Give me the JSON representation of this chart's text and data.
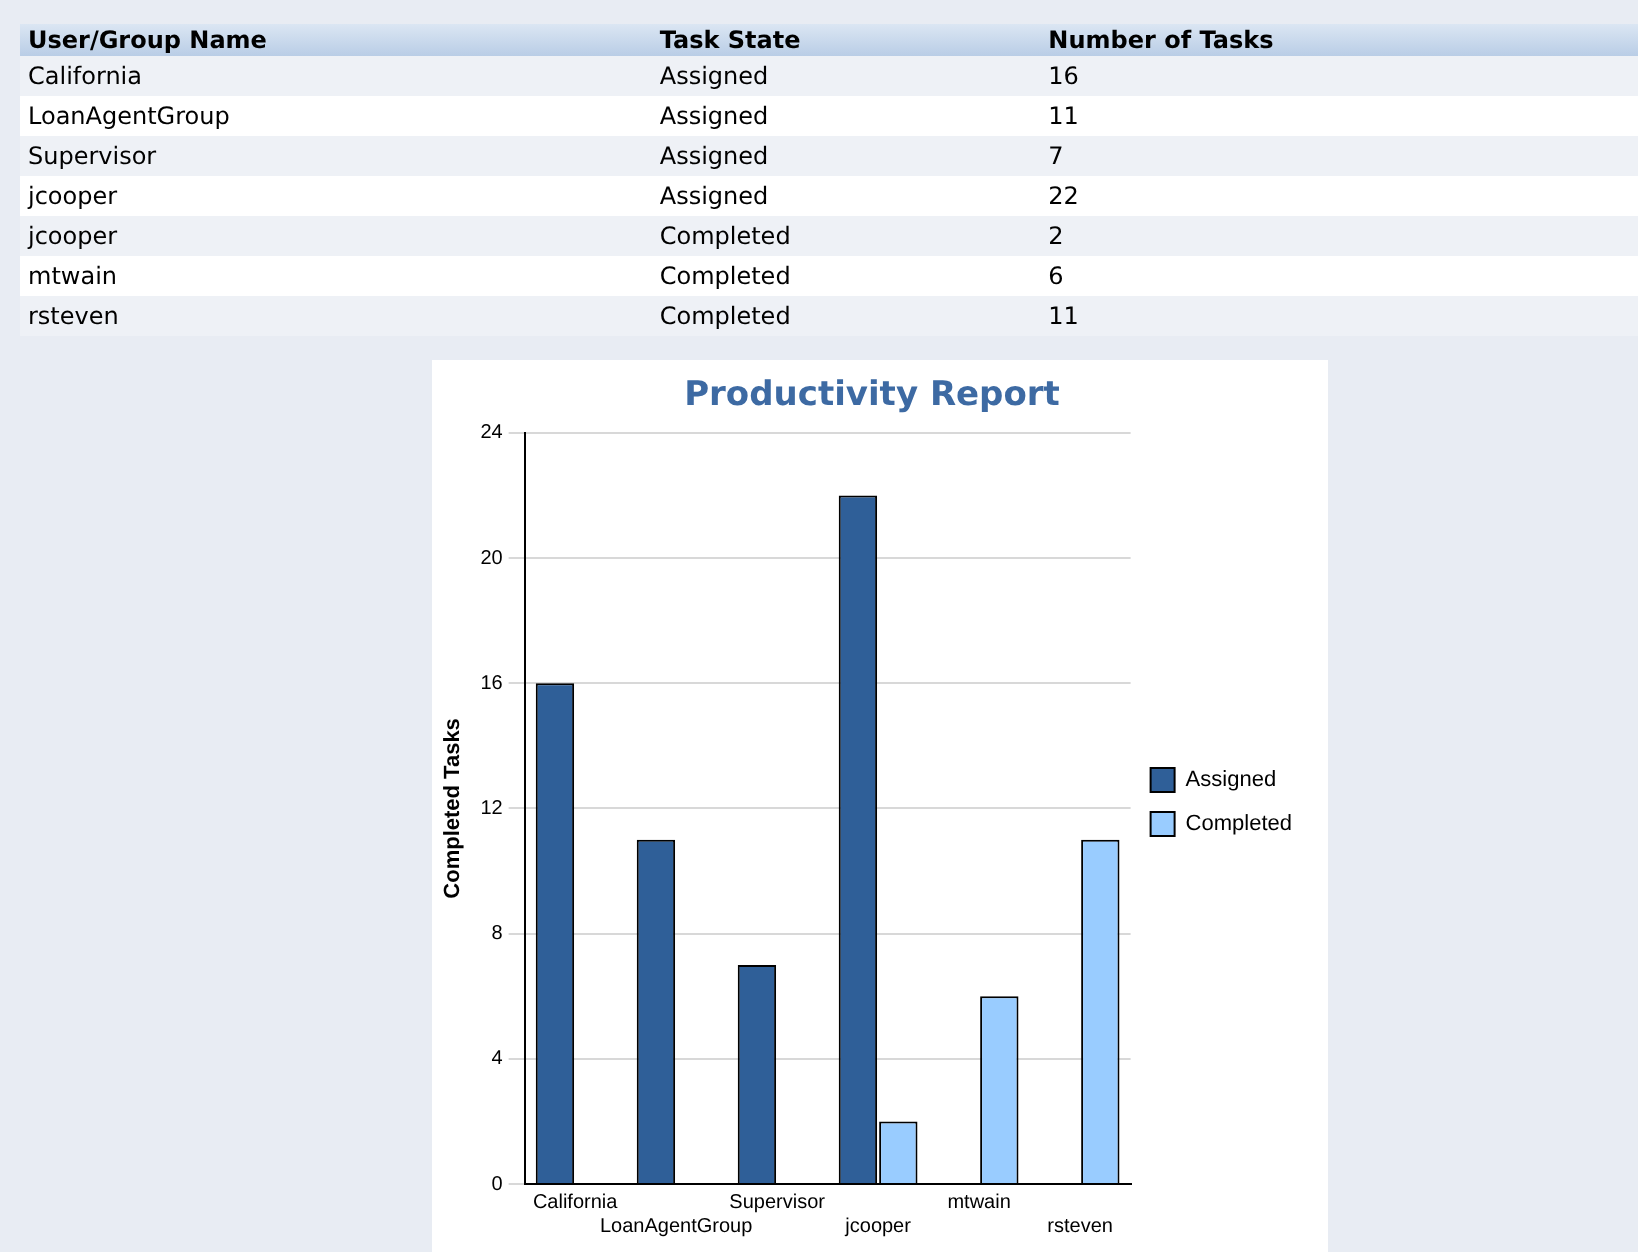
{
  "chart_data": [
    {
      "type": "other",
      "annotations": [
        "User/Group Name",
        "Task State",
        "Number of Tasks",
        "California",
        "Assigned",
        "16",
        "LoanAgentGroup",
        "Assigned",
        "11",
        "Supervisor",
        "Assigned",
        "7",
        "jcooper",
        "Assigned",
        "22",
        "jcooper",
        "Completed",
        "2",
        "mtwain",
        "Completed",
        "6",
        "rsteven",
        "Completed",
        "11"
      ]
    },
    {
      "type": "bar",
      "title": "Productivity Report",
      "ylabel": "Completed Tasks",
      "categories": [
        "California",
        "LoanAgentGroup",
        "Supervisor",
        "jcooper",
        "mtwain",
        "rsteven"
      ],
      "series": [
        {
          "name": "Assigned",
          "color": "#2f5f98",
          "values": [
            16,
            11,
            7,
            22,
            null,
            null
          ]
        },
        {
          "name": "Completed",
          "color": "#99ccff",
          "values": [
            null,
            null,
            null,
            2,
            6,
            11
          ]
        }
      ],
      "ylim": [
        0,
        24
      ],
      "yticks": [
        0,
        4,
        8,
        12,
        16,
        20,
        24
      ],
      "grid": "y",
      "legend": "right"
    }
  ]
}
